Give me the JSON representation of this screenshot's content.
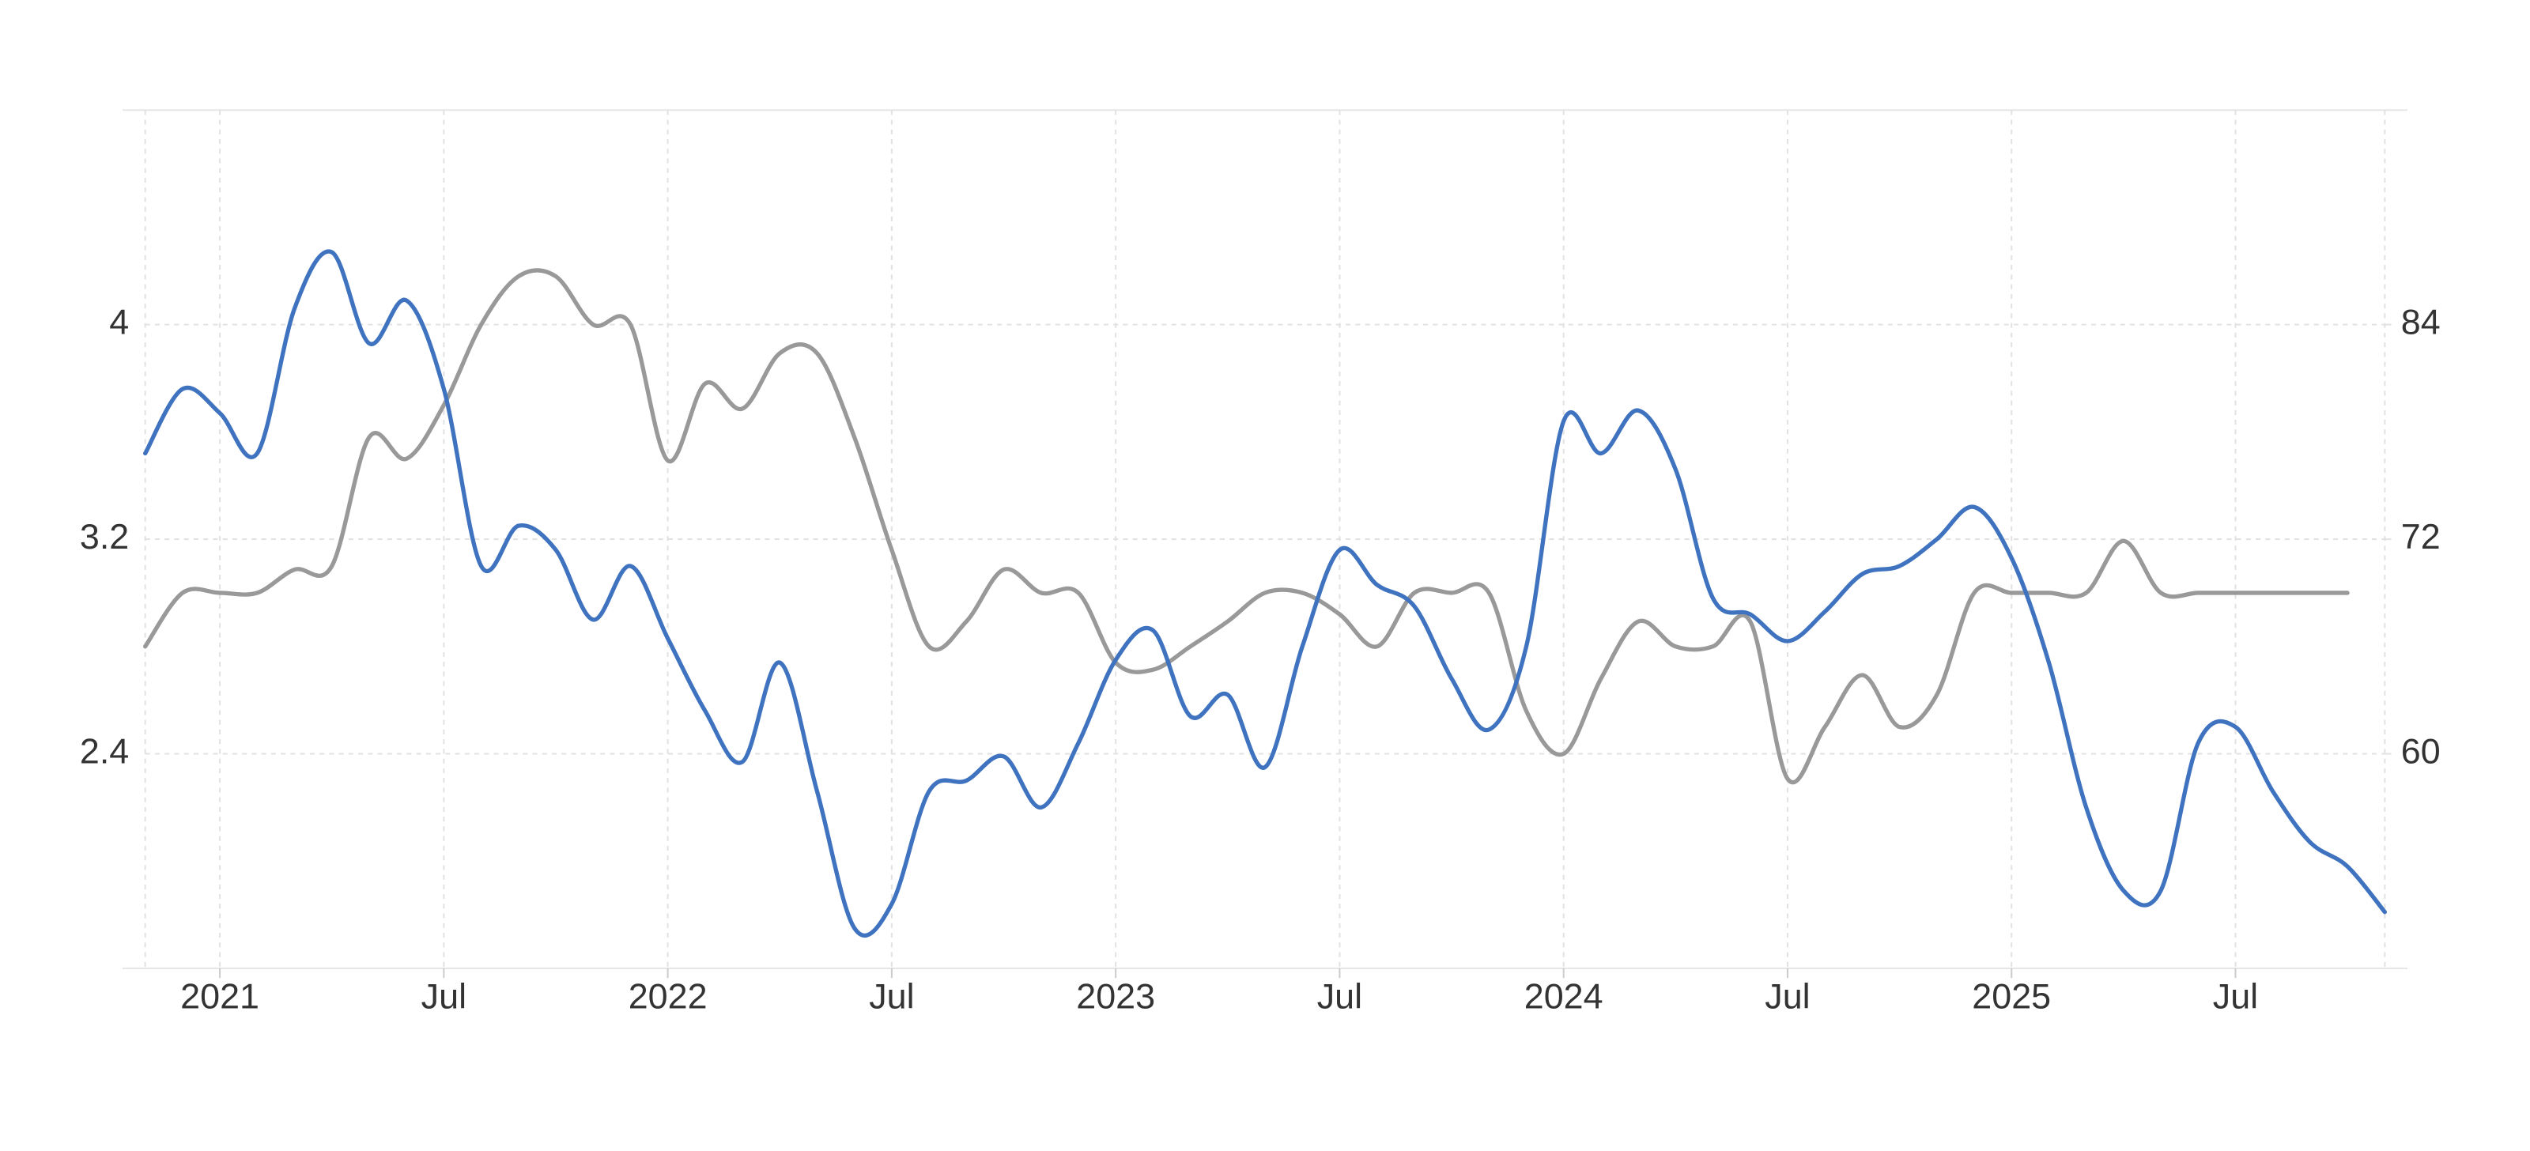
{
  "chart_data": {
    "type": "line",
    "x": [
      "2020-11",
      "2020-12",
      "2021-01",
      "2021-02",
      "2021-03",
      "2021-04",
      "2021-05",
      "2021-06",
      "2021-07",
      "2021-08",
      "2021-09",
      "2021-10",
      "2021-11",
      "2021-12",
      "2022-01",
      "2022-02",
      "2022-03",
      "2022-04",
      "2022-05",
      "2022-06",
      "2022-07",
      "2022-08",
      "2022-09",
      "2022-10",
      "2022-11",
      "2022-12",
      "2023-01",
      "2023-02",
      "2023-03",
      "2023-04",
      "2023-05",
      "2023-06",
      "2023-07",
      "2023-08",
      "2023-09",
      "2023-10",
      "2023-11",
      "2023-12",
      "2024-01",
      "2024-02",
      "2024-03",
      "2024-04",
      "2024-05",
      "2024-06",
      "2024-07",
      "2024-08",
      "2024-09",
      "2024-10",
      "2024-11",
      "2024-12",
      "2025-01",
      "2025-02",
      "2025-03",
      "2025-04",
      "2025-05",
      "2025-06",
      "2025-07",
      "2025-08",
      "2025-09",
      "2025-10",
      "2025-11"
    ],
    "series": [
      {
        "color": "#3f73bf",
        "values": [
          3.52,
          3.76,
          3.67,
          3.52,
          4.06,
          4.27,
          3.93,
          4.09,
          3.76,
          3.1,
          3.25,
          3.16,
          2.9,
          3.1,
          2.83,
          2.56,
          2.37,
          2.74,
          2.26,
          1.75,
          1.84,
          2.26,
          2.3,
          2.39,
          2.2,
          2.44,
          2.75,
          2.86,
          2.54,
          2.62,
          2.35,
          2.8,
          3.16,
          3.03,
          2.95,
          2.68,
          2.49,
          2.8,
          3.64,
          3.52,
          3.68,
          3.46,
          2.98,
          2.92,
          2.82,
          2.93,
          3.07,
          3.1,
          3.2,
          3.32,
          3.13,
          2.74,
          2.2,
          1.89,
          1.89,
          2.44,
          2.5,
          2.26,
          2.07,
          1.98,
          1.81
        ]
      },
      {
        "color": "#999999",
        "axis": "y2",
        "values": [
          66,
          69,
          69,
          69,
          70.3,
          70.5,
          77.7,
          76.5,
          79.5,
          84,
          86.7,
          86.7,
          84,
          84,
          76.4,
          80.7,
          79.3,
          82.4,
          82.4,
          77.7,
          71.4,
          66,
          67.4,
          70.3,
          69,
          69,
          65.1,
          64.7,
          66,
          67.4,
          69,
          69,
          67.8,
          66,
          69,
          69,
          69,
          62.4,
          60,
          64.2,
          67.4,
          66,
          66,
          67.4,
          58.6,
          61.5,
          64.4,
          61.5,
          63.3,
          69,
          69,
          69,
          69,
          71.9,
          69,
          69,
          69,
          69,
          69,
          69,
          null
        ]
      }
    ],
    "xticks": [
      {
        "value": "2021-01",
        "label": "2021"
      },
      {
        "value": "2021-07",
        "label": "Jul"
      },
      {
        "value": "2022-01",
        "label": "2022"
      },
      {
        "value": "2022-07",
        "label": "Jul"
      },
      {
        "value": "2023-01",
        "label": "2023"
      },
      {
        "value": "2023-07",
        "label": "Jul"
      },
      {
        "value": "2024-01",
        "label": "2024"
      },
      {
        "value": "2024-07",
        "label": "Jul"
      },
      {
        "value": "2025-01",
        "label": "2025"
      },
      {
        "value": "2025-07",
        "label": "Jul"
      }
    ],
    "ylim": [
      1.6,
      4.8
    ],
    "yticks": [
      2.4,
      3.2,
      4
    ],
    "y2lim": [
      48,
      96
    ],
    "y2ticks": [
      60,
      72,
      84
    ],
    "grid": true
  }
}
